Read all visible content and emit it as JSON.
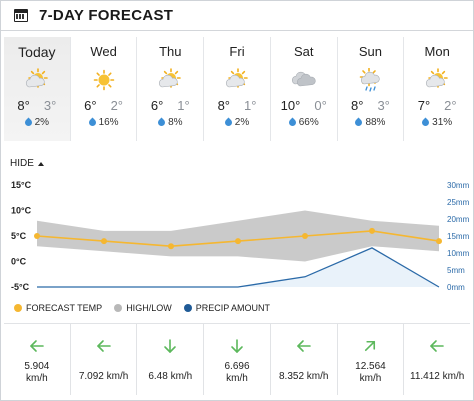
{
  "header": {
    "title": "7-DAY FORECAST",
    "icon": "calendar-icon"
  },
  "days": [
    {
      "name": "Today",
      "hi": "8°",
      "lo": "3°",
      "precip": "2%",
      "icon": "partly-sunny-icon"
    },
    {
      "name": "Wed",
      "hi": "6°",
      "lo": "2°",
      "precip": "16%",
      "icon": "sunny-icon"
    },
    {
      "name": "Thu",
      "hi": "6°",
      "lo": "1°",
      "precip": "8%",
      "icon": "partly-sunny-icon"
    },
    {
      "name": "Fri",
      "hi": "8°",
      "lo": "1°",
      "precip": "2%",
      "icon": "partly-sunny-icon"
    },
    {
      "name": "Sat",
      "hi": "10°",
      "lo": "0°",
      "precip": "66%",
      "icon": "cloudy-icon"
    },
    {
      "name": "Sun",
      "hi": "8°",
      "lo": "3°",
      "precip": "88%",
      "icon": "sun-rain-icon"
    },
    {
      "name": "Mon",
      "hi": "7°",
      "lo": "2°",
      "precip": "31%",
      "icon": "partly-sunny-icon"
    }
  ],
  "toggle": {
    "label": "HIDE"
  },
  "chart_data": {
    "type": "line",
    "categories": [
      "Today",
      "Wed",
      "Thu",
      "Fri",
      "Sat",
      "Sun",
      "Mon"
    ],
    "y_left": {
      "ticks": [
        "15°C",
        "10°C",
        "5°C",
        "0°C",
        "-5°C"
      ],
      "values": [
        15,
        10,
        5,
        0,
        -5
      ],
      "ylim": [
        -5,
        15
      ]
    },
    "y_right": {
      "ticks": [
        "30mm",
        "25mm",
        "20mm",
        "15mm",
        "10mm",
        "5mm",
        "0mm"
      ],
      "values": [
        30,
        25,
        20,
        15,
        10,
        5,
        0
      ],
      "ylim": [
        0,
        30
      ]
    },
    "series": [
      {
        "name": "FORECAST TEMP",
        "values": [
          5,
          4,
          3,
          4,
          5,
          6,
          4
        ],
        "color": "#f5b731"
      },
      {
        "name": "HIGH/LOW",
        "high": [
          8,
          6,
          6,
          8,
          10,
          8,
          7
        ],
        "low": [
          3,
          2,
          1,
          1,
          0,
          3,
          2
        ],
        "color": "#b8b8b8"
      },
      {
        "name": "PRECIP AMOUNT",
        "values": [
          0,
          0,
          0,
          0,
          3,
          11.5,
          0
        ],
        "color": "#2b6aa8"
      }
    ],
    "grid": false,
    "legend": "bottom-left"
  },
  "legend": [
    {
      "label": "FORECAST TEMP",
      "color": "#f5b731"
    },
    {
      "label": "HIGH/LOW",
      "color": "#b8b8b8"
    },
    {
      "label": "PRECIP AMOUNT",
      "color": "#1f5a96"
    }
  ],
  "wind": [
    {
      "speed": "5.904 km/h",
      "line1": "5.904",
      "line2": "km/h",
      "direction": "left",
      "icon": "arrow-left-icon"
    },
    {
      "speed": "7.092 km/h",
      "line1": "7.092 km/h",
      "line2": "",
      "direction": "left",
      "icon": "arrow-left-icon"
    },
    {
      "speed": "6.48 km/h",
      "line1": "6.48 km/h",
      "line2": "",
      "direction": "down",
      "icon": "arrow-down-icon"
    },
    {
      "speed": "6.696 km/h",
      "line1": "6.696",
      "line2": "km/h",
      "direction": "down",
      "icon": "arrow-down-icon"
    },
    {
      "speed": "8.352 km/h",
      "line1": "8.352 km/h",
      "line2": "",
      "direction": "left",
      "icon": "arrow-left-icon"
    },
    {
      "speed": "12.564 km/h",
      "line1": "12.564",
      "line2": "km/h",
      "direction": "up-right",
      "icon": "arrow-up-right-icon"
    },
    {
      "speed": "11.412 km/h",
      "line1": "11.412 km/h",
      "line2": "",
      "direction": "left",
      "icon": "arrow-left-icon"
    }
  ],
  "colors": {
    "wind_arrow": "#5cb85c",
    "precip_drop": "#3d8fd6",
    "right_axis": "#2b6aa8"
  }
}
